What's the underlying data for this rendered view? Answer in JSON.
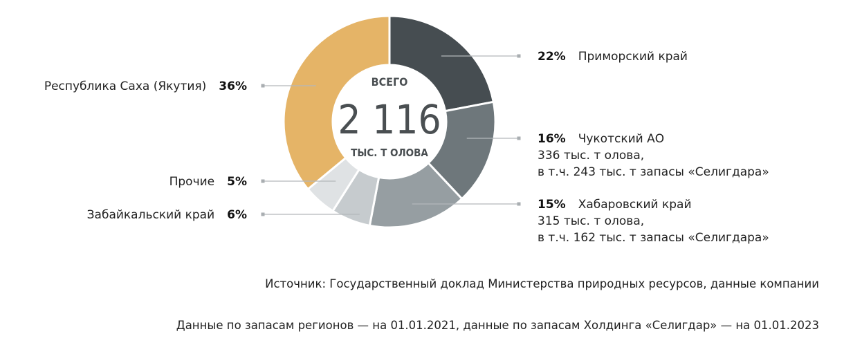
{
  "chart_data": {
    "type": "pie",
    "total": {
      "top": "ВСЕГО",
      "value": "2 116",
      "bottom": "ТЫС. Т ОЛОВА"
    },
    "series": [
      {
        "label": "Приморский край",
        "value": 22,
        "pct_label": "22%",
        "color": "#464d51",
        "side": "right",
        "details": []
      },
      {
        "label": "Чукотский АО",
        "value": 16,
        "pct_label": "16%",
        "color": "#6e777b",
        "side": "right",
        "details": [
          "336 тыс. т олова,",
          "в т.ч. 243 тыс. т запасы «Селигдара»"
        ]
      },
      {
        "label": "Хабаровский край",
        "value": 15,
        "pct_label": "15%",
        "color": "#969ea2",
        "side": "right",
        "details": [
          "315 тыс. т олова,",
          "в т.ч. 162 тыс. т запасы «Селигдара»"
        ]
      },
      {
        "label": "Забайкальский край",
        "value": 6,
        "pct_label": "6%",
        "color": "#c6cbce",
        "side": "left",
        "details": []
      },
      {
        "label": "Прочие",
        "value": 5,
        "pct_label": "5%",
        "color": "#dfe2e4",
        "side": "left",
        "details": []
      },
      {
        "label": "Республика Саха (Якутия)",
        "value": 36,
        "pct_label": "36%",
        "color": "#e5b467",
        "side": "left",
        "details": []
      }
    ]
  },
  "notes": {
    "source": "Источник: Государственный доклад Министерства природных ресурсов, данные компании",
    "dates": "Данные по запасам регионов — на 01.01.2021, данные по запасам Холдинга «Селигдар» — на 01.01.2023"
  },
  "colors": {
    "leader_line": "#b3b8bb",
    "leader_dot": "#a9aeb1",
    "center_text": "#4a4f52"
  }
}
